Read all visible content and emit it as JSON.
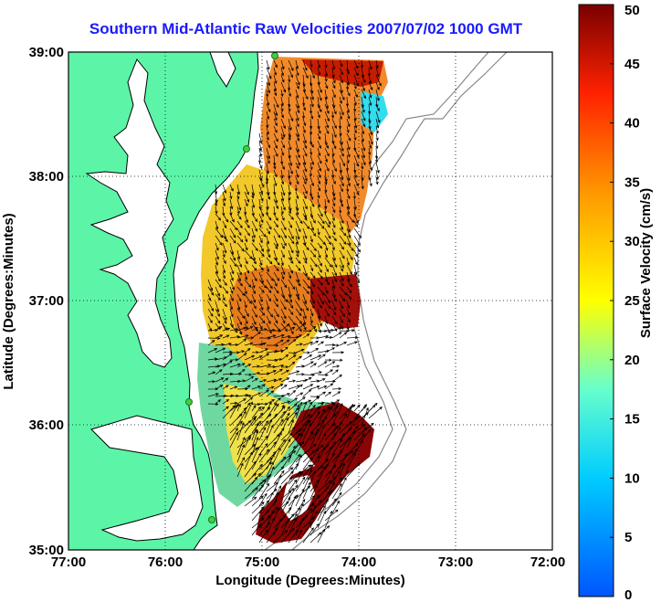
{
  "title": "Southern Mid-Atlantic Raw Velocities 2007/07/02 1000 GMT",
  "xlabel": "Longitude (Degrees:Minutes)",
  "ylabel": "Latitude (Degrees:Minutes)",
  "x_ticks": [
    "77:00",
    "76:00",
    "75:00",
    "74:00",
    "73:00",
    "72:00"
  ],
  "y_ticks": [
    "39:00",
    "38:00",
    "37:00",
    "36:00",
    "35:00"
  ],
  "colorbar": {
    "label": "Surface Velocity (cm/s)",
    "ticks": [
      "50",
      "45",
      "40",
      "35",
      "30",
      "25",
      "20",
      "15",
      "10",
      "5",
      "0"
    ],
    "min": 0,
    "max": 50,
    "colors": [
      "#0055ff",
      "#00ccff",
      "#66ffcc",
      "#ffff00",
      "#ff9900",
      "#ff2200",
      "#7a0000"
    ]
  },
  "colors": {
    "land": "#5cf5a8",
    "coastline": "#000000",
    "bathymetry": "#888888",
    "hf_station": "#44cc44"
  }
}
